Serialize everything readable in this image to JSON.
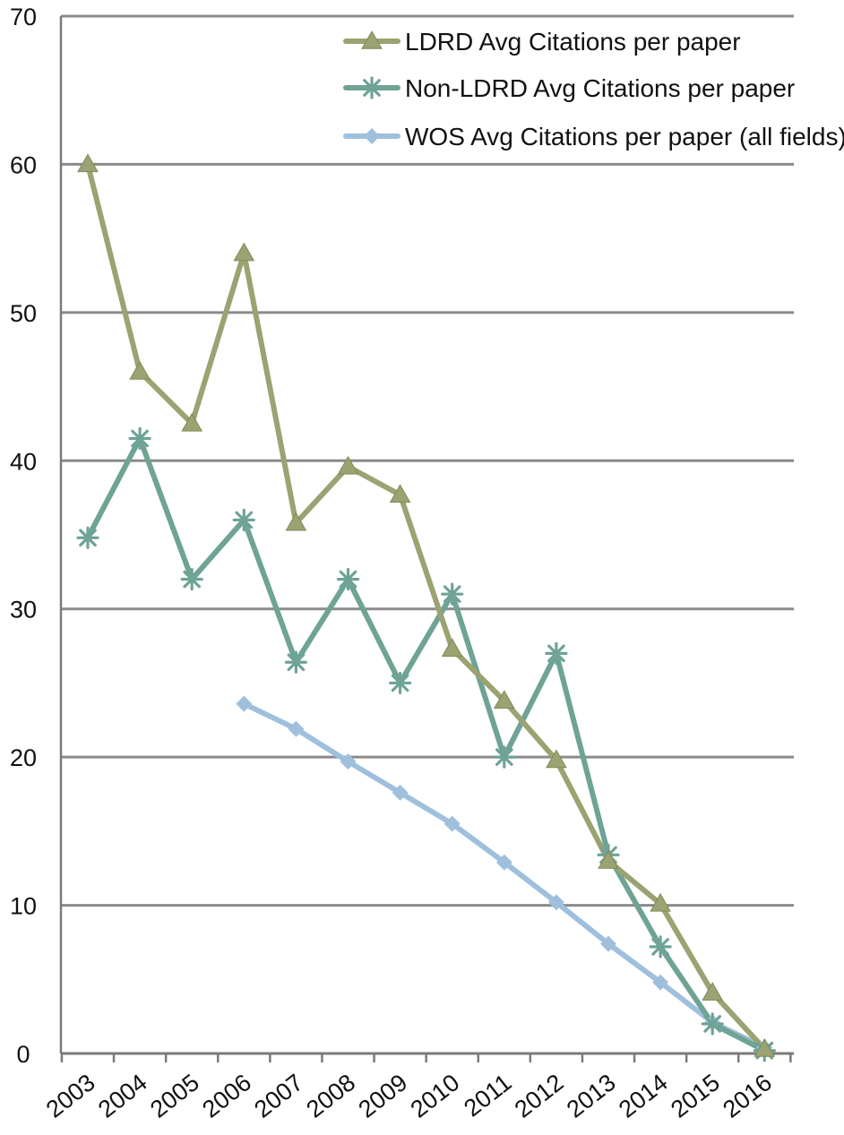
{
  "chart_data": {
    "type": "line",
    "title": "",
    "xlabel": "",
    "ylabel": "",
    "ylim": [
      0,
      70
    ],
    "yticks": [
      0,
      10,
      20,
      30,
      40,
      50,
      60,
      70
    ],
    "grid": true,
    "legend_position": "top-right",
    "categories": [
      "2003",
      "2004",
      "2005",
      "2006",
      "2007",
      "2008",
      "2009",
      "2010",
      "2011",
      "2012",
      "2013",
      "2014",
      "2015",
      "2016"
    ],
    "series": [
      {
        "name": "LDRD Avg Citations per paper",
        "color": "#9aa371",
        "marker": "triangle",
        "values": [
          60,
          46,
          42.5,
          54,
          35.8,
          39.6,
          37.7,
          27.3,
          23.8,
          19.8,
          13,
          10.1,
          4.1,
          0.3
        ]
      },
      {
        "name": "Non-LDRD Avg Citations per paper",
        "color": "#6ea396",
        "marker": "asterisk",
        "values": [
          34.8,
          41.5,
          32,
          36,
          26.4,
          32,
          25,
          31,
          20,
          27,
          13.4,
          7.2,
          2,
          0.2
        ]
      },
      {
        "name": "WOS Avg Citations per paper (all fields)",
        "color": "#9fc0dd",
        "marker": "diamond",
        "values": [
          null,
          null,
          null,
          23.6,
          21.9,
          19.7,
          17.6,
          15.5,
          12.9,
          10.2,
          7.4,
          4.8,
          2.1,
          0.4
        ]
      }
    ]
  }
}
